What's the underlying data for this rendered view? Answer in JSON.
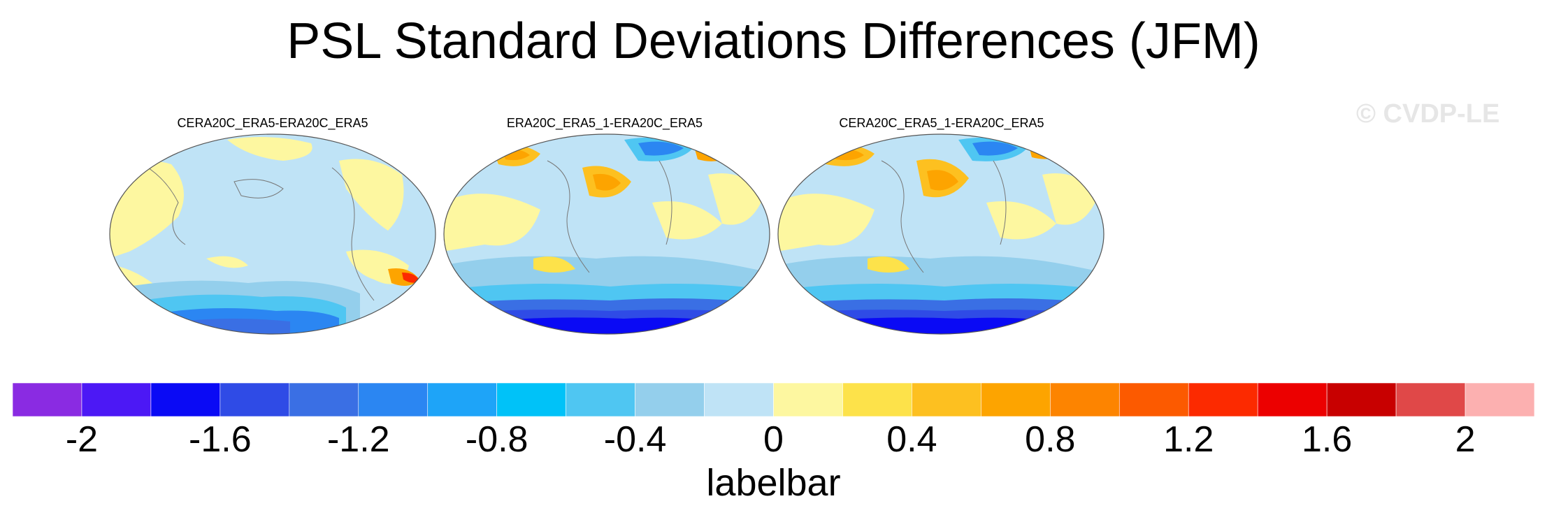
{
  "title": "PSL Standard Deviations Differences (JFM)",
  "watermark": "© CVDP-LE",
  "panels": [
    {
      "label": "CERA20C_ERA5-ERA20C_ERA5"
    },
    {
      "label": "ERA20C_ERA5_1-ERA20C_ERA5"
    },
    {
      "label": "CERA20C_ERA5_1-ERA20C_ERA5"
    }
  ],
  "colorbar": {
    "title": "labelbar",
    "ticks": [
      "-2",
      "-1.6",
      "-1.2",
      "-0.8",
      "-0.4",
      "0",
      "0.4",
      "0.8",
      "1.2",
      "1.6",
      "2"
    ],
    "colors": [
      "#8a2be2",
      "#4c18f5",
      "#0a0af5",
      "#2f4be6",
      "#3a6fe4",
      "#2b86f2",
      "#1ea4f8",
      "#00c2f8",
      "#4fc6f2",
      "#94cfec",
      "#bfe3f6",
      "#fdf7a0",
      "#fde24a",
      "#fdc020",
      "#fda400",
      "#fd8400",
      "#fc5a00",
      "#fc2a00",
      "#ec0000",
      "#c80000",
      "#e04848",
      "#fcb0b0"
    ]
  }
}
